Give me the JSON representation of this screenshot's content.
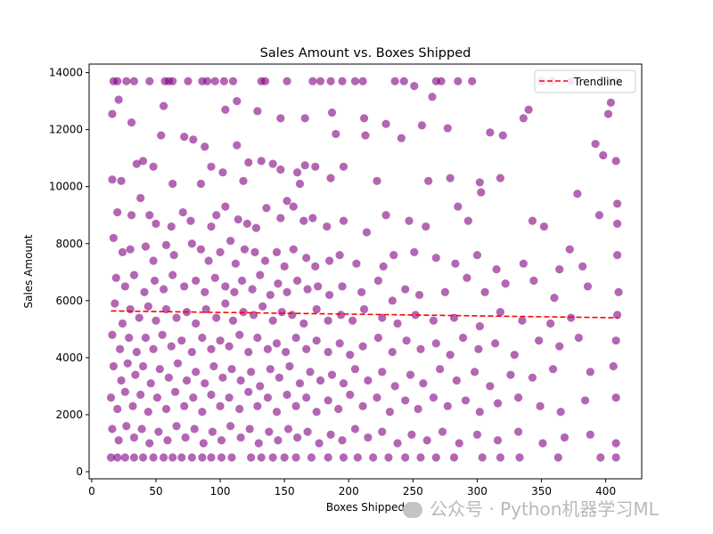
{
  "chart_data": {
    "type": "scatter",
    "title": "Sales Amount vs. Boxes Shipped",
    "xlabel": "Boxes Shipped",
    "ylabel": "Sales Amount",
    "xlim": [
      -2,
      428
    ],
    "ylim": [
      -250,
      14300
    ],
    "xticks": [
      0,
      50,
      100,
      150,
      200,
      250,
      300,
      350,
      400
    ],
    "yticks": [
      0,
      2000,
      4000,
      6000,
      8000,
      10000,
      12000,
      14000
    ],
    "grid": false,
    "legend_position": "top-right",
    "point_color": "#800080",
    "trend_color": "#ff0000",
    "legend": [
      "Trendline"
    ],
    "trendline": {
      "x": [
        15,
        410
      ],
      "y": [
        5640,
        5400
      ]
    },
    "points": [
      [
        17,
        13700
      ],
      [
        20,
        13700
      ],
      [
        27,
        13700
      ],
      [
        33,
        13700
      ],
      [
        45,
        13700
      ],
      [
        57,
        13700
      ],
      [
        60,
        13700
      ],
      [
        63,
        13700
      ],
      [
        75,
        13700
      ],
      [
        86,
        13700
      ],
      [
        90,
        13700
      ],
      [
        96,
        13700
      ],
      [
        103,
        13700
      ],
      [
        110,
        13700
      ],
      [
        132,
        13700
      ],
      [
        135,
        13700
      ],
      [
        152,
        13700
      ],
      [
        172,
        13700
      ],
      [
        178,
        13700
      ],
      [
        186,
        13700
      ],
      [
        195,
        13700
      ],
      [
        205,
        13700
      ],
      [
        211,
        13700
      ],
      [
        236,
        13700
      ],
      [
        243,
        13700
      ],
      [
        268,
        13700
      ],
      [
        272,
        13700
      ],
      [
        285,
        13700
      ],
      [
        296,
        13700
      ],
      [
        350,
        13700
      ],
      [
        358,
        13700
      ],
      [
        373,
        13700
      ],
      [
        405,
        13700
      ],
      [
        409,
        13700
      ],
      [
        251,
        13530
      ],
      [
        265,
        13150
      ],
      [
        404,
        12950
      ],
      [
        21,
        13050
      ],
      [
        56,
        12830
      ],
      [
        104,
        12700
      ],
      [
        113,
        13000
      ],
      [
        129,
        12650
      ],
      [
        147,
        12400
      ],
      [
        166,
        12400
      ],
      [
        187,
        12600
      ],
      [
        212,
        12400
      ],
      [
        213,
        11800
      ],
      [
        257,
        12150
      ],
      [
        277,
        12050
      ],
      [
        340,
        12700
      ],
      [
        336,
        12400
      ],
      [
        402,
        12550
      ],
      [
        16,
        12550
      ],
      [
        31,
        12250
      ],
      [
        54,
        11800
      ],
      [
        72,
        11750
      ],
      [
        79,
        11650
      ],
      [
        88,
        11400
      ],
      [
        113,
        11450
      ],
      [
        190,
        11850
      ],
      [
        229,
        12200
      ],
      [
        241,
        11700
      ],
      [
        310,
        11900
      ],
      [
        320,
        11800
      ],
      [
        392,
        11500
      ],
      [
        398,
        11100
      ],
      [
        408,
        10900
      ],
      [
        16,
        10250
      ],
      [
        23,
        10200
      ],
      [
        35,
        10800
      ],
      [
        40,
        10900
      ],
      [
        48,
        10700
      ],
      [
        63,
        10100
      ],
      [
        85,
        10100
      ],
      [
        93,
        10700
      ],
      [
        102,
        10500
      ],
      [
        118,
        10200
      ],
      [
        122,
        10850
      ],
      [
        132,
        10900
      ],
      [
        141,
        10800
      ],
      [
        147,
        10600
      ],
      [
        160,
        10500
      ],
      [
        162,
        10100
      ],
      [
        166,
        10750
      ],
      [
        174,
        10700
      ],
      [
        186,
        10300
      ],
      [
        196,
        10700
      ],
      [
        222,
        10200
      ],
      [
        262,
        10200
      ],
      [
        279,
        10300
      ],
      [
        302,
        10150
      ],
      [
        303,
        9800
      ],
      [
        318,
        10300
      ],
      [
        378,
        9750
      ],
      [
        409,
        9400
      ],
      [
        20,
        9100
      ],
      [
        31,
        9000
      ],
      [
        38,
        9600
      ],
      [
        45,
        9000
      ],
      [
        50,
        8700
      ],
      [
        62,
        8600
      ],
      [
        71,
        9100
      ],
      [
        77,
        8800
      ],
      [
        93,
        8600
      ],
      [
        97,
        9000
      ],
      [
        104,
        9300
      ],
      [
        114,
        8850
      ],
      [
        121,
        8700
      ],
      [
        128,
        8550
      ],
      [
        136,
        9250
      ],
      [
        147,
        8900
      ],
      [
        152,
        9500
      ],
      [
        157,
        9300
      ],
      [
        165,
        8800
      ],
      [
        172,
        8900
      ],
      [
        183,
        8600
      ],
      [
        196,
        8800
      ],
      [
        214,
        8400
      ],
      [
        229,
        9000
      ],
      [
        247,
        8800
      ],
      [
        260,
        8600
      ],
      [
        285,
        9300
      ],
      [
        293,
        8800
      ],
      [
        343,
        8800
      ],
      [
        352,
        8600
      ],
      [
        395,
        9000
      ],
      [
        409,
        8700
      ],
      [
        17,
        8200
      ],
      [
        24,
        7700
      ],
      [
        30,
        7800
      ],
      [
        42,
        7900
      ],
      [
        48,
        7400
      ],
      [
        58,
        7950
      ],
      [
        64,
        7600
      ],
      [
        78,
        8000
      ],
      [
        85,
        7800
      ],
      [
        91,
        7400
      ],
      [
        100,
        7700
      ],
      [
        108,
        8100
      ],
      [
        112,
        7300
      ],
      [
        119,
        7800
      ],
      [
        127,
        7700
      ],
      [
        135,
        7400
      ],
      [
        144,
        7700
      ],
      [
        150,
        7200
      ],
      [
        157,
        7800
      ],
      [
        167,
        7500
      ],
      [
        174,
        7200
      ],
      [
        185,
        7400
      ],
      [
        193,
        7600
      ],
      [
        206,
        7300
      ],
      [
        227,
        7200
      ],
      [
        235,
        7600
      ],
      [
        251,
        7700
      ],
      [
        268,
        7500
      ],
      [
        283,
        7300
      ],
      [
        300,
        7600
      ],
      [
        315,
        7100
      ],
      [
        336,
        7300
      ],
      [
        364,
        7100
      ],
      [
        372,
        7800
      ],
      [
        382,
        7200
      ],
      [
        409,
        7600
      ],
      [
        19,
        6800
      ],
      [
        26,
        6500
      ],
      [
        33,
        6900
      ],
      [
        41,
        6300
      ],
      [
        49,
        6700
      ],
      [
        56,
        6400
      ],
      [
        63,
        6900
      ],
      [
        72,
        6500
      ],
      [
        81,
        6700
      ],
      [
        88,
        6300
      ],
      [
        96,
        6800
      ],
      [
        104,
        6500
      ],
      [
        111,
        6300
      ],
      [
        117,
        6700
      ],
      [
        125,
        6400
      ],
      [
        131,
        6900
      ],
      [
        139,
        6200
      ],
      [
        145,
        6600
      ],
      [
        152,
        6300
      ],
      [
        160,
        6700
      ],
      [
        168,
        6400
      ],
      [
        176,
        6500
      ],
      [
        185,
        6200
      ],
      [
        195,
        6500
      ],
      [
        210,
        6300
      ],
      [
        223,
        6700
      ],
      [
        234,
        6000
      ],
      [
        244,
        6400
      ],
      [
        255,
        6200
      ],
      [
        275,
        6300
      ],
      [
        292,
        6800
      ],
      [
        306,
        6300
      ],
      [
        322,
        6600
      ],
      [
        344,
        6700
      ],
      [
        360,
        6100
      ],
      [
        386,
        6500
      ],
      [
        410,
        6300
      ],
      [
        18,
        5900
      ],
      [
        24,
        5200
      ],
      [
        30,
        5700
      ],
      [
        37,
        5400
      ],
      [
        44,
        5800
      ],
      [
        50,
        5300
      ],
      [
        58,
        5700
      ],
      [
        66,
        5400
      ],
      [
        74,
        5600
      ],
      [
        81,
        5200
      ],
      [
        89,
        5700
      ],
      [
        97,
        5400
      ],
      [
        104,
        5900
      ],
      [
        110,
        5300
      ],
      [
        118,
        5600
      ],
      [
        126,
        5500
      ],
      [
        133,
        5800
      ],
      [
        141,
        5300
      ],
      [
        148,
        5600
      ],
      [
        156,
        5500
      ],
      [
        165,
        5200
      ],
      [
        175,
        5700
      ],
      [
        184,
        5300
      ],
      [
        194,
        5500
      ],
      [
        203,
        5300
      ],
      [
        212,
        5700
      ],
      [
        226,
        5400
      ],
      [
        238,
        5200
      ],
      [
        252,
        5500
      ],
      [
        266,
        5300
      ],
      [
        282,
        5400
      ],
      [
        302,
        5100
      ],
      [
        318,
        5600
      ],
      [
        335,
        5300
      ],
      [
        357,
        5200
      ],
      [
        373,
        5400
      ],
      [
        409,
        5500
      ],
      [
        16,
        4800
      ],
      [
        22,
        4300
      ],
      [
        29,
        4700
      ],
      [
        35,
        4200
      ],
      [
        42,
        4700
      ],
      [
        48,
        4300
      ],
      [
        55,
        4800
      ],
      [
        62,
        4400
      ],
      [
        70,
        4600
      ],
      [
        78,
        4200
      ],
      [
        86,
        4700
      ],
      [
        93,
        4300
      ],
      [
        100,
        4600
      ],
      [
        107,
        4400
      ],
      [
        115,
        4800
      ],
      [
        122,
        4200
      ],
      [
        129,
        4700
      ],
      [
        137,
        4300
      ],
      [
        144,
        4500
      ],
      [
        151,
        4200
      ],
      [
        159,
        4700
      ],
      [
        167,
        4300
      ],
      [
        175,
        4600
      ],
      [
        184,
        4200
      ],
      [
        193,
        4500
      ],
      [
        201,
        4100
      ],
      [
        211,
        4400
      ],
      [
        223,
        4700
      ],
      [
        234,
        4200
      ],
      [
        245,
        4600
      ],
      [
        256,
        4300
      ],
      [
        268,
        4500
      ],
      [
        279,
        4100
      ],
      [
        289,
        4700
      ],
      [
        301,
        4300
      ],
      [
        314,
        4500
      ],
      [
        329,
        4100
      ],
      [
        348,
        4600
      ],
      [
        364,
        4400
      ],
      [
        379,
        4700
      ],
      [
        408,
        4600
      ],
      [
        17,
        3700
      ],
      [
        23,
        3200
      ],
      [
        28,
        3800
      ],
      [
        34,
        3400
      ],
      [
        40,
        3700
      ],
      [
        46,
        3100
      ],
      [
        53,
        3600
      ],
      [
        60,
        3300
      ],
      [
        67,
        3800
      ],
      [
        74,
        3200
      ],
      [
        81,
        3500
      ],
      [
        88,
        3100
      ],
      [
        95,
        3700
      ],
      [
        102,
        3300
      ],
      [
        109,
        3600
      ],
      [
        116,
        3200
      ],
      [
        124,
        3500
      ],
      [
        131,
        3000
      ],
      [
        139,
        3600
      ],
      [
        146,
        3300
      ],
      [
        154,
        3700
      ],
      [
        162,
        3100
      ],
      [
        170,
        3500
      ],
      [
        178,
        3200
      ],
      [
        187,
        3400
      ],
      [
        196,
        3100
      ],
      [
        205,
        3600
      ],
      [
        215,
        3200
      ],
      [
        226,
        3500
      ],
      [
        236,
        3000
      ],
      [
        248,
        3400
      ],
      [
        258,
        3100
      ],
      [
        271,
        3600
      ],
      [
        284,
        3200
      ],
      [
        298,
        3500
      ],
      [
        310,
        3000
      ],
      [
        326,
        3400
      ],
      [
        343,
        3300
      ],
      [
        359,
        3600
      ],
      [
        388,
        3500
      ],
      [
        406,
        3700
      ],
      [
        15,
        2600
      ],
      [
        20,
        2200
      ],
      [
        26,
        2800
      ],
      [
        32,
        2300
      ],
      [
        38,
        2700
      ],
      [
        44,
        2100
      ],
      [
        51,
        2600
      ],
      [
        58,
        2200
      ],
      [
        65,
        2800
      ],
      [
        72,
        2300
      ],
      [
        79,
        2600
      ],
      [
        86,
        2100
      ],
      [
        93,
        2700
      ],
      [
        100,
        2300
      ],
      [
        107,
        2600
      ],
      [
        115,
        2200
      ],
      [
        122,
        2800
      ],
      [
        129,
        2300
      ],
      [
        137,
        2600
      ],
      [
        144,
        2100
      ],
      [
        152,
        2700
      ],
      [
        159,
        2300
      ],
      [
        167,
        2600
      ],
      [
        175,
        2100
      ],
      [
        184,
        2500
      ],
      [
        192,
        2200
      ],
      [
        201,
        2700
      ],
      [
        211,
        2300
      ],
      [
        222,
        2600
      ],
      [
        232,
        2100
      ],
      [
        244,
        2500
      ],
      [
        254,
        2200
      ],
      [
        266,
        2600
      ],
      [
        277,
        2300
      ],
      [
        291,
        2500
      ],
      [
        302,
        2100
      ],
      [
        316,
        2400
      ],
      [
        332,
        2600
      ],
      [
        349,
        2300
      ],
      [
        365,
        2100
      ],
      [
        384,
        2500
      ],
      [
        408,
        2600
      ],
      [
        16,
        1500
      ],
      [
        21,
        1100
      ],
      [
        27,
        1600
      ],
      [
        33,
        1200
      ],
      [
        39,
        1500
      ],
      [
        45,
        1000
      ],
      [
        52,
        1400
      ],
      [
        59,
        1100
      ],
      [
        66,
        1600
      ],
      [
        73,
        1200
      ],
      [
        80,
        1500
      ],
      [
        87,
        1000
      ],
      [
        94,
        1400
      ],
      [
        101,
        1100
      ],
      [
        108,
        1600
      ],
      [
        116,
        1200
      ],
      [
        123,
        1500
      ],
      [
        130,
        1000
      ],
      [
        138,
        1400
      ],
      [
        145,
        1100
      ],
      [
        153,
        1500
      ],
      [
        160,
        1200
      ],
      [
        168,
        1400
      ],
      [
        177,
        1000
      ],
      [
        186,
        1300
      ],
      [
        195,
        1100
      ],
      [
        205,
        1500
      ],
      [
        215,
        1200
      ],
      [
        226,
        1400
      ],
      [
        238,
        1000
      ],
      [
        249,
        1300
      ],
      [
        261,
        1100
      ],
      [
        273,
        1400
      ],
      [
        286,
        1000
      ],
      [
        300,
        1300
      ],
      [
        316,
        1100
      ],
      [
        332,
        1400
      ],
      [
        351,
        1000
      ],
      [
        368,
        1200
      ],
      [
        388,
        1300
      ],
      [
        408,
        1000
      ],
      [
        15,
        500
      ],
      [
        20,
        500
      ],
      [
        26,
        500
      ],
      [
        33,
        500
      ],
      [
        40,
        500
      ],
      [
        48,
        500
      ],
      [
        56,
        500
      ],
      [
        63,
        500
      ],
      [
        70,
        500
      ],
      [
        78,
        500
      ],
      [
        86,
        500
      ],
      [
        93,
        500
      ],
      [
        101,
        500
      ],
      [
        109,
        500
      ],
      [
        124,
        500
      ],
      [
        132,
        500
      ],
      [
        141,
        500
      ],
      [
        150,
        500
      ],
      [
        159,
        500
      ],
      [
        171,
        500
      ],
      [
        184,
        500
      ],
      [
        196,
        500
      ],
      [
        207,
        500
      ],
      [
        219,
        500
      ],
      [
        231,
        500
      ],
      [
        244,
        500
      ],
      [
        256,
        500
      ],
      [
        268,
        500
      ],
      [
        282,
        500
      ],
      [
        304,
        500
      ],
      [
        318,
        500
      ],
      [
        333,
        500
      ],
      [
        363,
        500
      ],
      [
        396,
        500
      ],
      [
        408,
        500
      ]
    ]
  },
  "watermark": {
    "text": "公众号 · Python机器学习ML"
  }
}
